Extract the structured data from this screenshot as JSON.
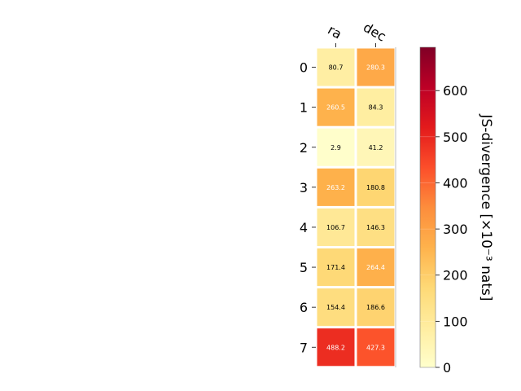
{
  "chart_data": {
    "type": "heatmap",
    "columns": [
      "ra",
      "dec"
    ],
    "rows": [
      "0",
      "1",
      "2",
      "3",
      "4",
      "5",
      "6",
      "7"
    ],
    "values": [
      [
        80.7,
        280.3
      ],
      [
        260.5,
        84.3
      ],
      [
        2.9,
        41.2
      ],
      [
        263.2,
        180.8
      ],
      [
        106.7,
        146.3
      ],
      [
        171.4,
        264.4
      ],
      [
        154.4,
        186.6
      ],
      [
        488.2,
        427.3
      ]
    ],
    "colormap": "YlOrRd",
    "colorbar": {
      "label": "JS-divergence [×10⁻³ nats]",
      "range": [
        0,
        694
      ],
      "ticks": [
        "0",
        "100",
        "200",
        "300",
        "400",
        "500",
        "600"
      ],
      "tick_values": [
        0,
        100,
        200,
        300,
        400,
        500,
        600
      ]
    }
  }
}
